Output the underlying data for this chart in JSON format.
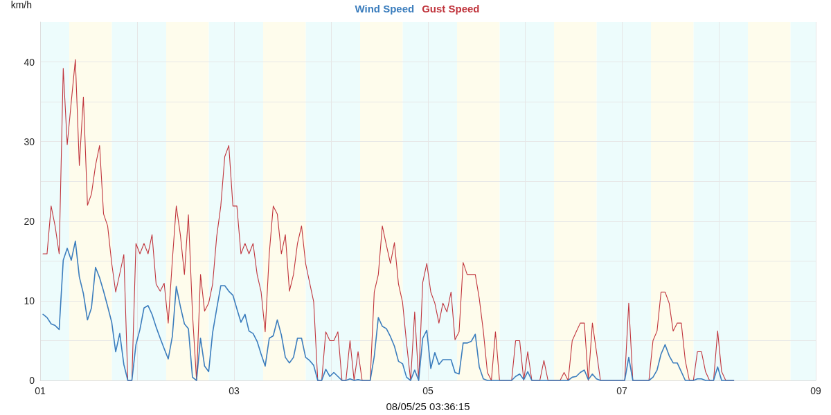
{
  "chart_data": {
    "type": "line",
    "title": null,
    "ylabel": "km/h",
    "xlabel": "08/05/25 03:36:15",
    "x": [
      1.029,
      1.071,
      1.113,
      1.154,
      1.196,
      1.238,
      1.279,
      1.321,
      1.363,
      1.404,
      1.446,
      1.488,
      1.529,
      1.571,
      1.613,
      1.654,
      1.696,
      1.738,
      1.779,
      1.821,
      1.863,
      1.904,
      1.946,
      1.988,
      2.029,
      2.071,
      2.113,
      2.154,
      2.196,
      2.238,
      2.279,
      2.321,
      2.363,
      2.404,
      2.446,
      2.488,
      2.529,
      2.571,
      2.613,
      2.654,
      2.696,
      2.738,
      2.779,
      2.821,
      2.863,
      2.904,
      2.946,
      2.988,
      3.029,
      3.071,
      3.113,
      3.154,
      3.196,
      3.238,
      3.279,
      3.321,
      3.363,
      3.404,
      3.446,
      3.488,
      3.529,
      3.571,
      3.613,
      3.654,
      3.696,
      3.738,
      3.779,
      3.821,
      3.863,
      3.904,
      3.946,
      3.988,
      4.029,
      4.071,
      4.113,
      4.154,
      4.196,
      4.238,
      4.279,
      4.321,
      4.363,
      4.404,
      4.446,
      4.488,
      4.529,
      4.571,
      4.613,
      4.654,
      4.696,
      4.738,
      4.779,
      4.821,
      4.863,
      4.904,
      4.946,
      4.988,
      5.029,
      5.071,
      5.113,
      5.154,
      5.196,
      5.238,
      5.279,
      5.321,
      5.363,
      5.404,
      5.446,
      5.488,
      5.529,
      5.571,
      5.613,
      5.654,
      5.696,
      5.738,
      5.779,
      5.821,
      5.863,
      5.904,
      5.946,
      5.988,
      6.029,
      6.071,
      6.113,
      6.154,
      6.196,
      6.238,
      6.279,
      6.321,
      6.363,
      6.404,
      6.446,
      6.488,
      6.529,
      6.571,
      6.613,
      6.654,
      6.696,
      6.738,
      6.779,
      6.821,
      6.863,
      6.904,
      6.946,
      6.988,
      7.029,
      7.071,
      7.113,
      7.154,
      7.196,
      7.238,
      7.279,
      7.321,
      7.363,
      7.404,
      7.446,
      7.488,
      7.529,
      7.571,
      7.613,
      7.654,
      7.696,
      7.738,
      7.779,
      7.821,
      7.863,
      7.904,
      7.946,
      7.988,
      8.029,
      8.071,
      8.113,
      8.154
    ],
    "series": [
      {
        "name": "Wind Speed",
        "color": "#3b7dbd",
        "values": [
          8.3,
          7.9,
          7.1,
          6.9,
          6.4,
          15.1,
          16.6,
          15.1,
          17.5,
          13,
          10.9,
          7.6,
          9.1,
          14.2,
          12.9,
          11.2,
          9.3,
          7.3,
          3.6,
          5.9,
          2.0,
          0,
          0,
          4.5,
          6.4,
          9.1,
          9.4,
          8.3,
          6.7,
          5.3,
          4.0,
          2.7,
          5.5,
          11.8,
          9.3,
          7.1,
          6.5,
          0.4,
          0,
          5.3,
          1.8,
          1.1,
          6.0,
          9.0,
          11.9,
          11.9,
          11.2,
          10.7,
          9.0,
          7.3,
          8.3,
          6.2,
          5.9,
          4.9,
          3.3,
          1.8,
          5.3,
          5.6,
          7.6,
          5.7,
          2.9,
          2.2,
          2.9,
          5.3,
          5.3,
          2.9,
          2.5,
          1.9,
          0,
          0,
          1.4,
          0.5,
          1.0,
          0.5,
          0,
          0,
          0.2,
          0,
          0.1,
          0,
          0,
          0,
          3.0,
          7.9,
          6.8,
          6.5,
          5.5,
          4.3,
          2.4,
          2.1,
          0.4,
          0,
          1.3,
          0,
          5.3,
          6.3,
          1.5,
          3.5,
          2.0,
          2.6,
          2.6,
          2.6,
          1.0,
          0.8,
          4.7,
          4.7,
          4.9,
          5.8,
          1.7,
          0.2,
          0,
          0,
          0,
          0,
          0,
          0,
          0,
          0.5,
          0.8,
          0.1,
          1.1,
          0,
          0,
          0,
          0,
          0,
          0,
          0,
          0,
          0,
          0,
          0.4,
          0.5,
          1.0,
          1.3,
          0.1,
          0.8,
          0.2,
          0,
          0,
          0,
          0,
          0,
          0,
          0,
          2.9,
          0,
          0,
          0,
          0,
          0,
          0.4,
          1.3,
          3.3,
          4.5,
          3.1,
          2.2,
          2.2,
          1.1,
          0,
          0,
          0,
          0.2,
          0.2,
          0,
          0,
          0,
          1.7,
          0,
          0,
          0,
          0
        ]
      },
      {
        "name": "Gust Speed",
        "color": "#c0343c",
        "values": [
          15.9,
          15.9,
          21.9,
          19.4,
          15.9,
          39.2,
          29.6,
          35,
          40.3,
          27,
          35.6,
          22,
          23.4,
          27,
          29.5,
          20.9,
          19.4,
          14.7,
          11.1,
          13.4,
          15.8,
          0,
          0,
          17.2,
          15.9,
          17.2,
          15.9,
          18.3,
          12.1,
          11.2,
          12.2,
          7.2,
          15,
          21.9,
          18.3,
          13.3,
          20.8,
          8.4,
          0,
          13.3,
          8.7,
          9.7,
          12.1,
          18.1,
          21.9,
          28.1,
          29.5,
          21.9,
          21.9,
          15.9,
          17.2,
          15.9,
          17.2,
          13.3,
          11.1,
          6.1,
          15.9,
          21.9,
          20.9,
          15.9,
          18.3,
          11.2,
          13.3,
          17.2,
          19.4,
          14.7,
          12.3,
          9.9,
          0,
          0,
          6.1,
          5,
          5,
          6.1,
          0,
          0,
          5,
          0,
          3.6,
          0,
          0,
          0,
          11.1,
          13.3,
          19.4,
          17,
          14.7,
          17.3,
          12.1,
          9.8,
          4.7,
          0,
          8.6,
          0,
          12.3,
          14.7,
          11.1,
          9.7,
          7.2,
          9.7,
          8.6,
          11.1,
          5.1,
          6.1,
          14.8,
          13.3,
          13.3,
          13.3,
          10.3,
          6.2,
          1,
          0,
          6.1,
          0,
          0,
          0,
          0,
          5,
          5,
          0,
          3.6,
          0,
          0,
          0,
          2.5,
          0,
          0,
          0,
          0,
          1,
          0,
          5,
          6.1,
          7.2,
          7.2,
          0,
          7.2,
          3.6,
          0,
          0,
          0,
          0,
          0,
          0,
          0,
          9.7,
          0,
          0,
          0,
          0,
          0,
          5,
          6.2,
          11.1,
          11.1,
          9.7,
          6.2,
          7.2,
          7.2,
          2.5,
          0,
          0,
          3.6,
          3.6,
          1.1,
          0,
          0,
          6.2,
          1.1,
          0,
          0,
          0
        ]
      }
    ],
    "xlim": [
      1,
      9
    ],
    "xticks": [
      {
        "value": 1,
        "label": "01"
      },
      {
        "value": 2,
        "label": null
      },
      {
        "value": 3,
        "label": "03"
      },
      {
        "value": 4,
        "label": null
      },
      {
        "value": 5,
        "label": "05"
      },
      {
        "value": 6,
        "label": null
      },
      {
        "value": 7,
        "label": "07"
      },
      {
        "value": 8,
        "label": null
      },
      {
        "value": 9,
        "label": "09"
      }
    ],
    "ylim": [
      0,
      45
    ],
    "yticks": [
      0,
      {
        "value": 5,
        "label": null
      },
      10,
      {
        "value": 15,
        "label": null
      },
      20,
      {
        "value": 25,
        "label": null
      },
      30,
      {
        "value": 35,
        "label": null
      },
      40
    ],
    "bands": [
      {
        "axis": "x",
        "from": 1,
        "to": 1.3,
        "color": "#edfcfc"
      },
      {
        "axis": "x",
        "from": 1.3,
        "to": 1.74,
        "color": "#fefcec"
      },
      {
        "axis": "x",
        "from": 1.74,
        "to": 2.3,
        "color": "#edfcfc"
      },
      {
        "axis": "x",
        "from": 2.3,
        "to": 2.74,
        "color": "#fefcec"
      },
      {
        "axis": "x",
        "from": 2.74,
        "to": 3.3,
        "color": "#edfcfc"
      },
      {
        "axis": "x",
        "from": 3.3,
        "to": 3.74,
        "color": "#fefcec"
      },
      {
        "axis": "x",
        "from": 3.74,
        "to": 4.3,
        "color": "#edfcfc"
      },
      {
        "axis": "x",
        "from": 4.3,
        "to": 4.74,
        "color": "#fefcec"
      },
      {
        "axis": "x",
        "from": 4.74,
        "to": 5.3,
        "color": "#edfcfc"
      },
      {
        "axis": "x",
        "from": 5.3,
        "to": 5.74,
        "color": "#fefcec"
      },
      {
        "axis": "x",
        "from": 5.74,
        "to": 6.3,
        "color": "#edfcfc"
      },
      {
        "axis": "x",
        "from": 6.3,
        "to": 6.74,
        "color": "#fefcec"
      },
      {
        "axis": "x",
        "from": 6.74,
        "to": 7.3,
        "color": "#edfcfc"
      },
      {
        "axis": "x",
        "from": 7.3,
        "to": 7.74,
        "color": "#fefcec"
      },
      {
        "axis": "x",
        "from": 7.74,
        "to": 8.3,
        "color": "#edfcfc"
      },
      {
        "axis": "x",
        "from": 8.3,
        "to": 8.74,
        "color": "#fefcec"
      },
      {
        "axis": "x",
        "from": 8.74,
        "to": 9,
        "color": "#edfcfc"
      }
    ],
    "grid": true,
    "legend": "top",
    "marker": "none",
    "line_style": "solid"
  }
}
